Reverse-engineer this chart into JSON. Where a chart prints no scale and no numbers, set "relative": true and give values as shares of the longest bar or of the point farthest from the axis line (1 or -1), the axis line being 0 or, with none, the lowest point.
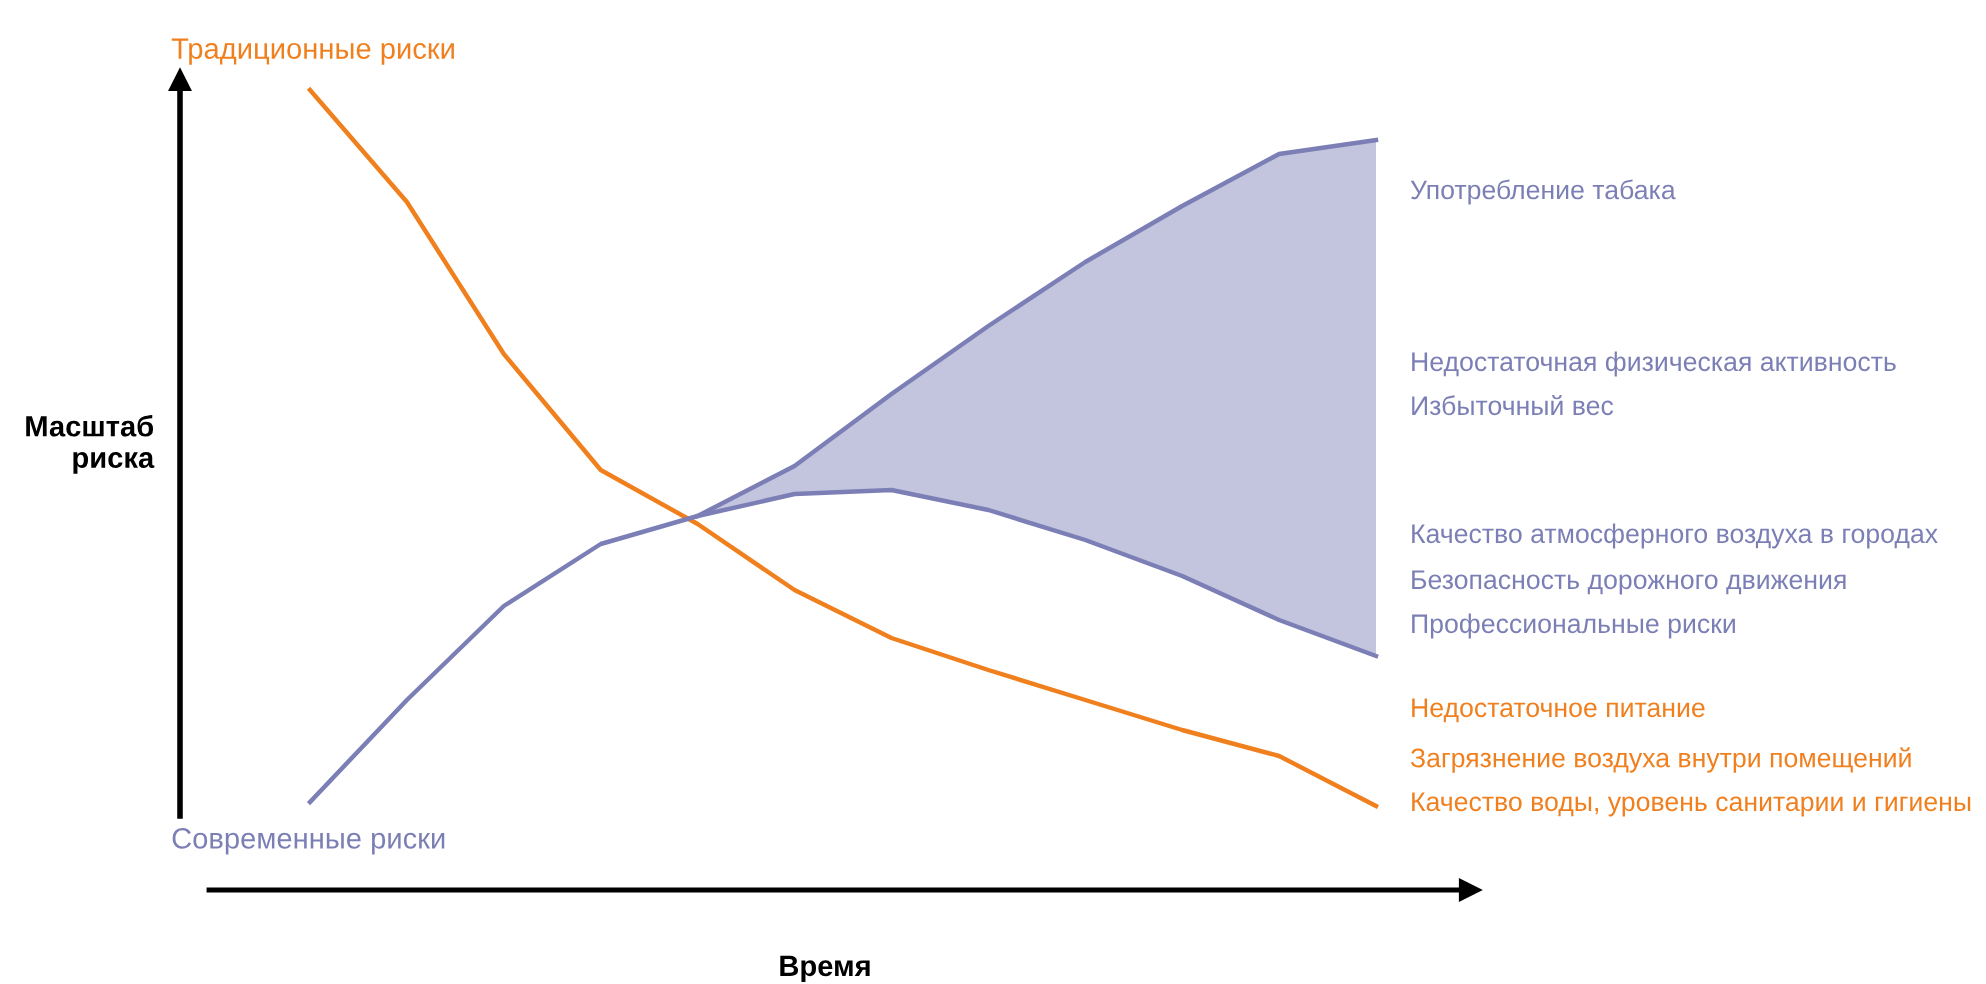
{
  "chart_data": {
    "type": "line",
    "relative": true,
    "xlabel": "Время",
    "ylabel": "Масштаб\nриска",
    "categories": [
      null,
      null,
      null,
      null,
      null,
      null,
      null,
      null,
      null,
      null,
      null,
      null
    ],
    "series": [
      {
        "name": "Традиционные риски",
        "color": "#f07f1e",
        "values": [
          1.0,
          0.86,
          0.67,
          0.525,
          0.4575,
          0.375,
          0.315,
          0.275,
          0.2375,
          0.2,
          0.1675,
          0.105
        ]
      },
      {
        "name": "Современные риски",
        "color": "#7b7fb5",
        "values": [
          0.11,
          0.2375,
          0.355,
          0.4325,
          0.4675,
          0.495,
          0.5,
          0.475,
          0.4375,
          0.3925,
          0.3375,
          0.2925
        ]
      },
      {
        "color": "#7b7fb5",
        "values": [
          null,
          null,
          null,
          null,
          0.4675,
          0.53,
          0.62,
          0.705,
          0.785,
          0.855,
          0.92,
          0.9375
        ],
        "lower": [
          null,
          null,
          null,
          null,
          0.4675,
          0.495,
          0.5,
          0.475,
          0.4375,
          0.3925,
          0.3375,
          0.2925
        ],
        "upper": [
          null,
          null,
          null,
          null,
          0.4675,
          0.53,
          0.62,
          0.705,
          0.785,
          0.855,
          0.92,
          0.9375
        ]
      }
    ],
    "annotations": [
      "Употребление табака",
      "Недостаточная физическая активность",
      "Избыточный вес",
      "Качество атмосферного воздуха в городах",
      "Безопасность дорожного движения",
      "Профессиональные риски",
      "Недостаточное питание",
      "Загрязнение воздуха внутри помещений",
      "Качество воды, уровень санитарии и гигиены"
    ]
  }
}
